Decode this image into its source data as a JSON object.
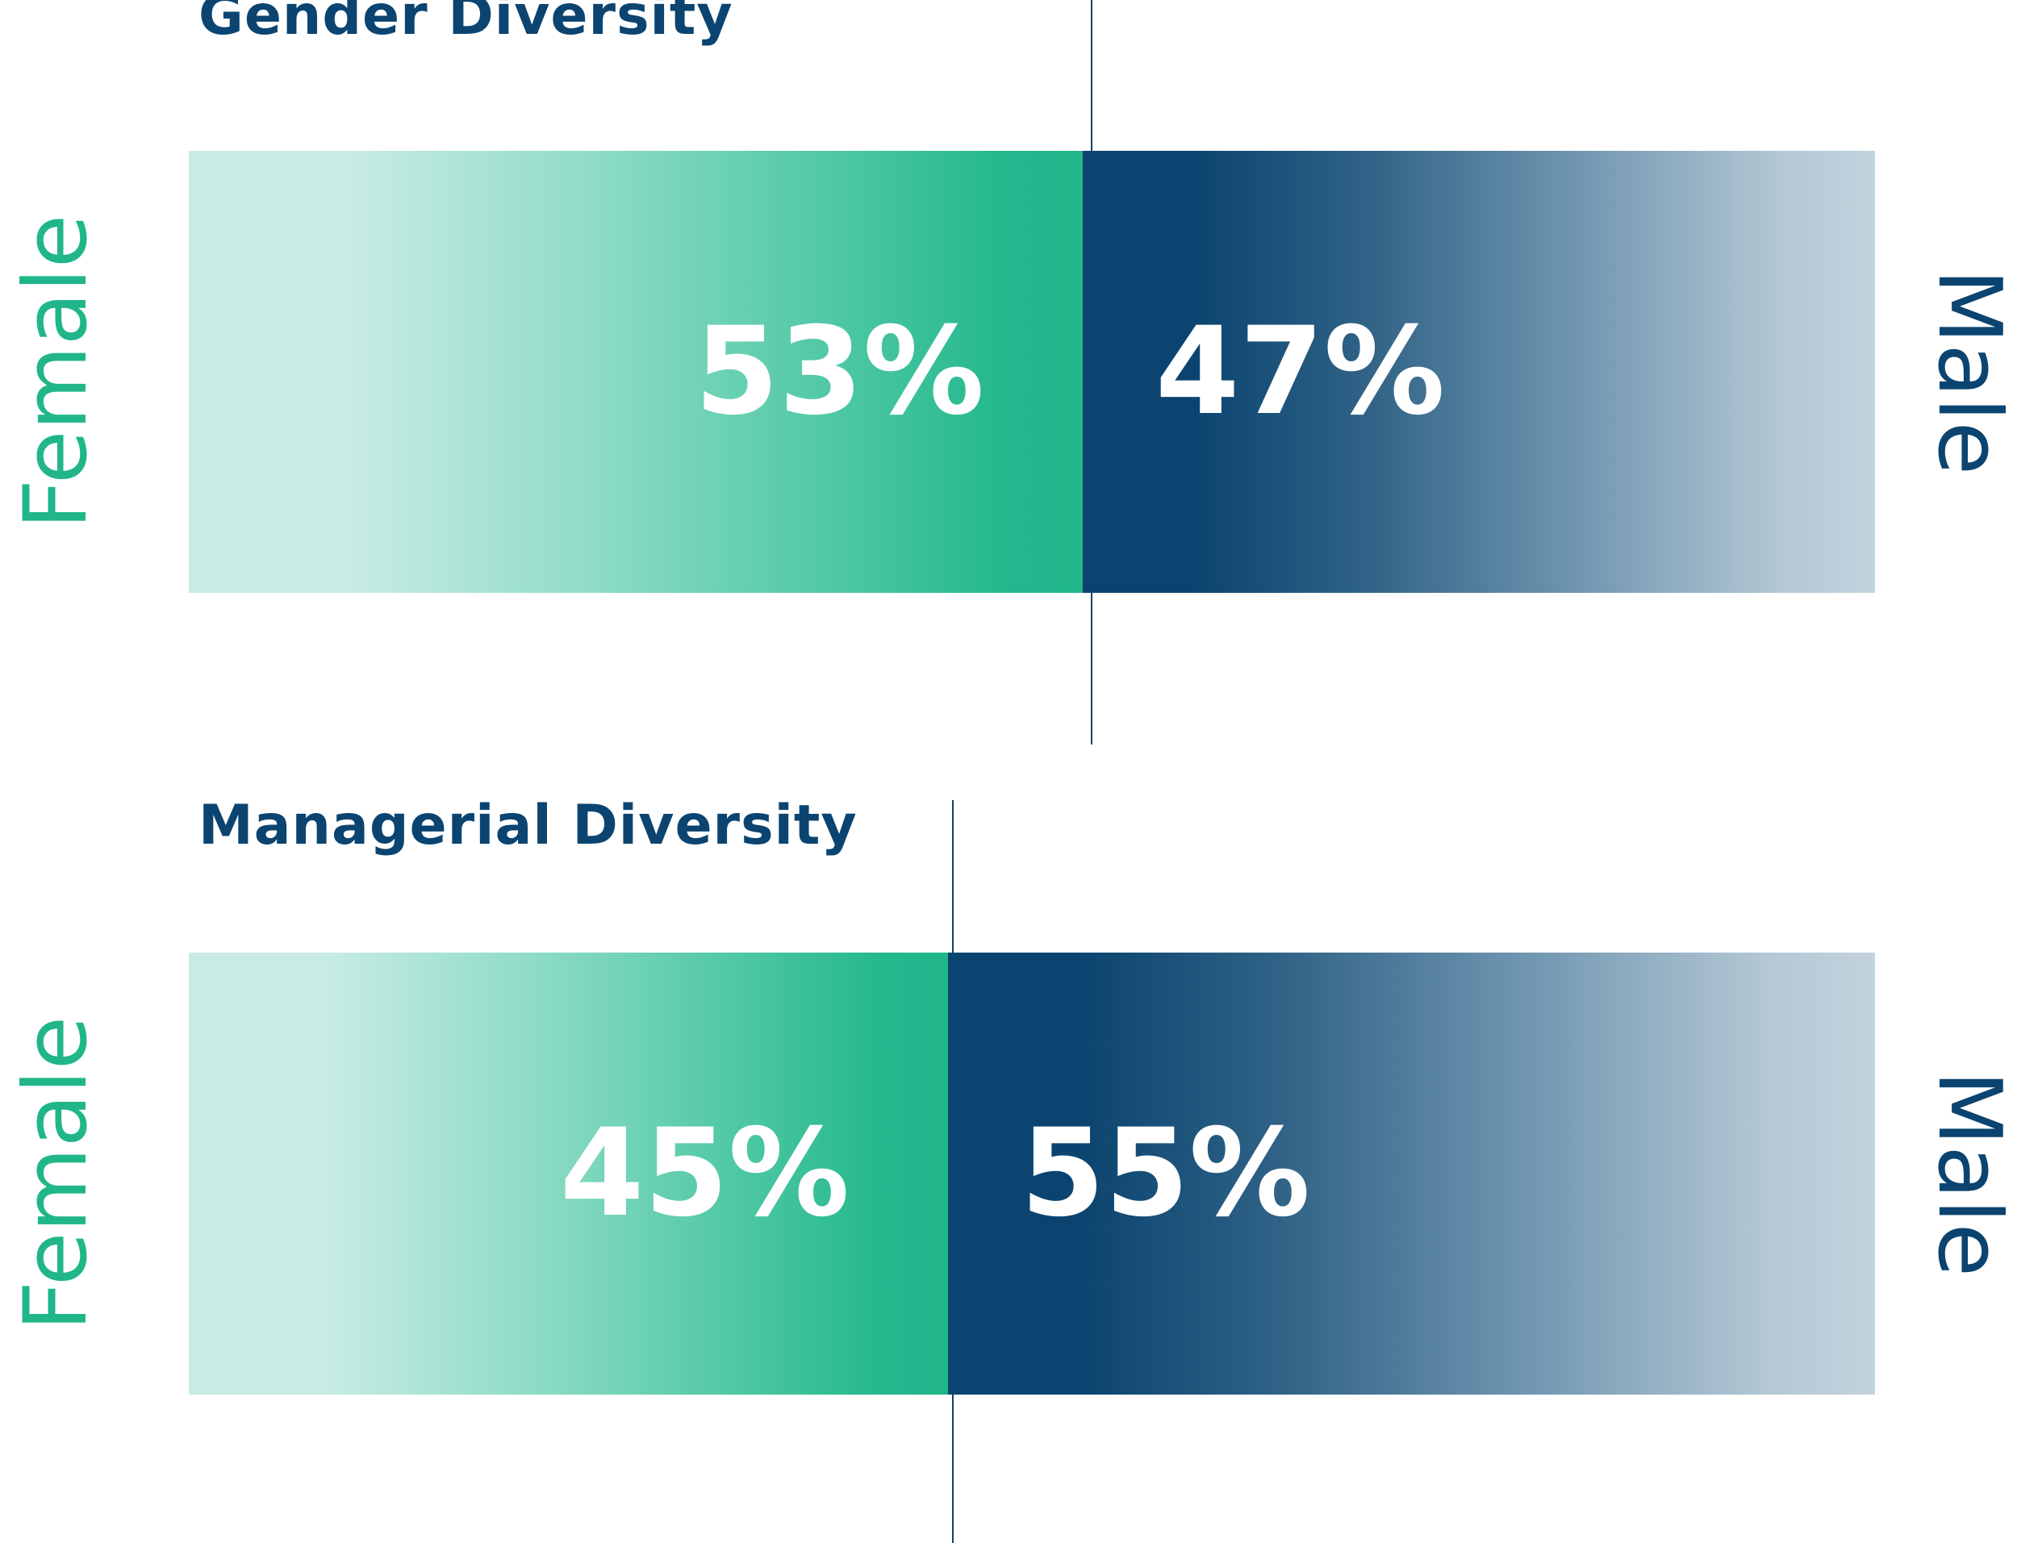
{
  "charts": [
    {
      "title": "Gender Diversity",
      "female_label": "Female",
      "male_label": "Male",
      "female_text": "53%",
      "male_text": "47%"
    },
    {
      "title": "Managerial Diversity",
      "female_label": "Female",
      "male_label": "Male",
      "female_text": "45%",
      "male_text": "55%"
    }
  ],
  "colors": {
    "title": "#0b4470",
    "female": "#20b68a",
    "female_light": "#c8ece3",
    "male": "#0b4470",
    "male_light": "#c3d3de",
    "value_text": "#ffffff"
  },
  "chart_data": [
    {
      "type": "bar",
      "title": "Gender Diversity",
      "categories": [
        "Female",
        "Male"
      ],
      "values": [
        53,
        47
      ],
      "unit": "%",
      "stacked": true,
      "orientation": "horizontal",
      "ylim": [
        0,
        100
      ]
    },
    {
      "type": "bar",
      "title": "Managerial Diversity",
      "categories": [
        "Female",
        "Male"
      ],
      "values": [
        45,
        55
      ],
      "unit": "%",
      "stacked": true,
      "orientation": "horizontal",
      "ylim": [
        0,
        100
      ]
    }
  ]
}
